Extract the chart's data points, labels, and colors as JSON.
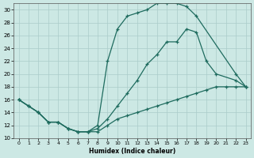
{
  "xlabel": "Humidex (Indice chaleur)",
  "bg_color": "#cce8e4",
  "grid_color": "#b8d8d4",
  "line_color": "#1e6b5e",
  "xlim": [
    -0.5,
    23.5
  ],
  "ylim": [
    10,
    31
  ],
  "xtick_labels": [
    "0",
    "1",
    "2",
    "3",
    "4",
    "5",
    "6",
    "7",
    "8",
    "9",
    "10",
    "11",
    "12",
    "13",
    "14",
    "15",
    "16",
    "17",
    "18",
    "19",
    "20",
    "21",
    "22",
    "23"
  ],
  "xtick_vals": [
    0,
    1,
    2,
    3,
    4,
    5,
    6,
    7,
    8,
    9,
    10,
    11,
    12,
    13,
    14,
    15,
    16,
    17,
    18,
    19,
    20,
    21,
    22,
    23
  ],
  "ytick_vals": [
    10,
    12,
    14,
    16,
    18,
    20,
    22,
    24,
    26,
    28,
    30
  ],
  "line_high_x": [
    0,
    1,
    2,
    3,
    4,
    5,
    6,
    7,
    8,
    9,
    10,
    11,
    12,
    13,
    14,
    15,
    16,
    17,
    18,
    22,
    23
  ],
  "line_high_y": [
    16,
    15,
    14,
    12.5,
    12.5,
    11.5,
    11,
    11,
    12,
    22,
    27,
    29,
    29.5,
    30,
    31,
    31,
    31,
    30.5,
    29,
    20,
    18
  ],
  "line_mid_x": [
    0,
    1,
    2,
    3,
    4,
    5,
    6,
    7,
    8,
    9,
    10,
    11,
    12,
    13,
    14,
    15,
    16,
    17,
    18,
    19,
    20,
    22,
    23
  ],
  "line_mid_y": [
    16,
    15,
    14,
    12.5,
    12.5,
    11.5,
    11,
    11,
    11.5,
    13,
    15,
    17,
    19,
    21.5,
    23,
    25,
    25,
    27,
    26.5,
    22,
    20,
    19,
    18
  ],
  "line_low_x": [
    0,
    1,
    2,
    3,
    4,
    5,
    6,
    7,
    8,
    9,
    10,
    11,
    12,
    13,
    14,
    15,
    16,
    17,
    18,
    19,
    20,
    21,
    22,
    23
  ],
  "line_low_y": [
    16,
    15,
    14,
    12.5,
    12.5,
    11.5,
    11,
    11,
    11,
    12,
    13,
    13.5,
    14,
    14.5,
    15,
    15.5,
    16,
    16.5,
    17,
    17.5,
    18,
    18,
    18,
    18
  ]
}
